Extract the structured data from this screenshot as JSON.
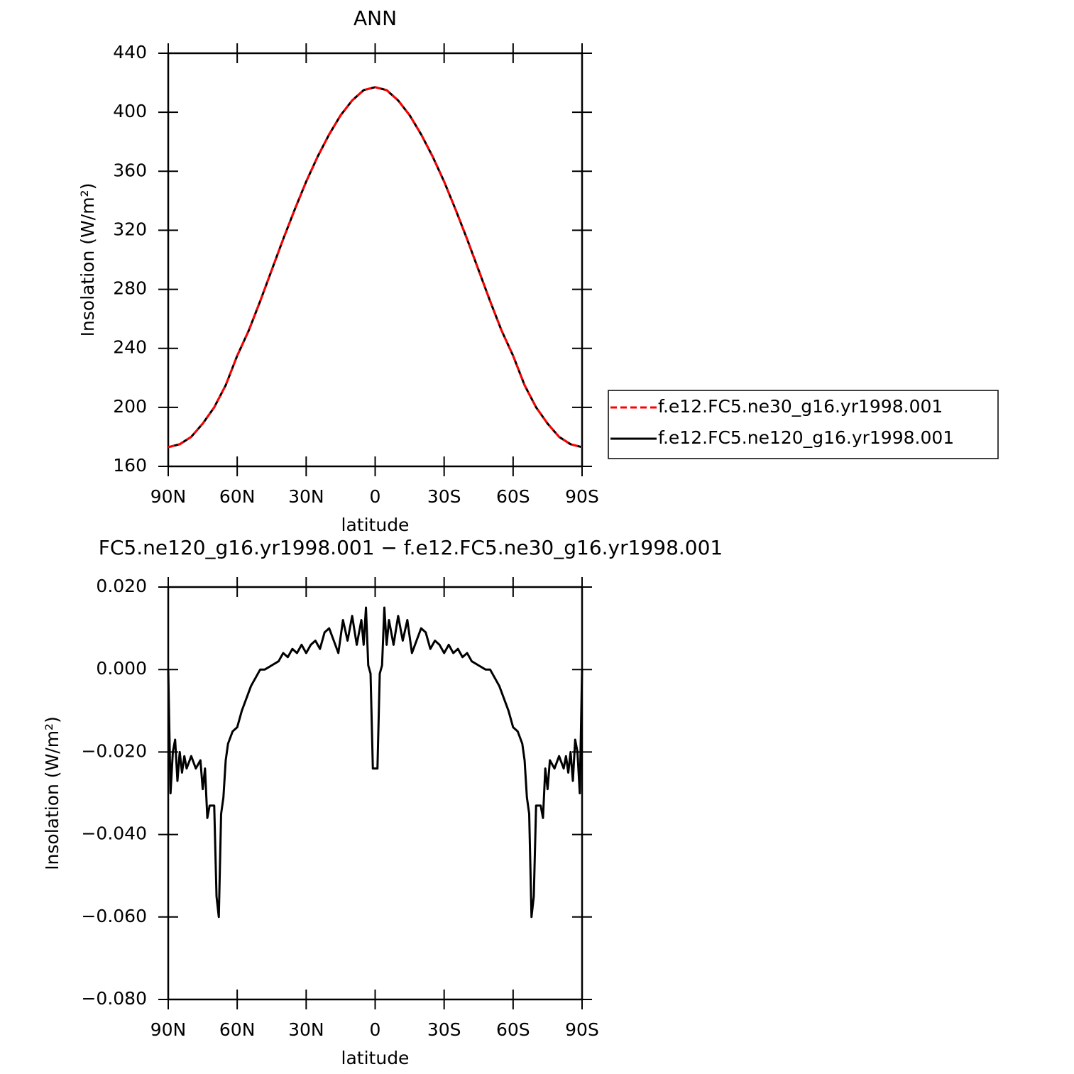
{
  "chart_data": [
    {
      "type": "line",
      "title": "ANN",
      "x_label": "latitude",
      "y_label": "Insolation (W/m²)",
      "x": [
        90,
        85,
        80,
        75,
        70,
        65,
        60,
        55,
        50,
        45,
        40,
        35,
        30,
        25,
        20,
        15,
        10,
        5,
        0,
        -5,
        -10,
        -15,
        -20,
        -25,
        -30,
        -35,
        -40,
        -45,
        -50,
        -55,
        -60,
        -65,
        -70,
        -75,
        -80,
        -85,
        -90
      ],
      "series": [
        {
          "name": "f.e12.FC5.ne30_g16.yr1998.001",
          "color": "#ff0000",
          "style": "dashed",
          "values": [
            173,
            175,
            180,
            189,
            200,
            215,
            235,
            252,
            272,
            293,
            314,
            334,
            353,
            370,
            385,
            398,
            408,
            415,
            417,
            415,
            408,
            398,
            385,
            370,
            353,
            334,
            314,
            293,
            272,
            252,
            235,
            215,
            200,
            189,
            180,
            175,
            173
          ]
        },
        {
          "name": "f.e12.FC5.ne120_g16.yr1998.001",
          "color": "#000000",
          "style": "solid",
          "values": [
            173,
            175,
            180,
            189,
            200,
            215,
            235,
            252,
            272,
            293,
            314,
            334,
            353,
            370,
            385,
            398,
            408,
            415,
            417,
            415,
            408,
            398,
            385,
            370,
            353,
            334,
            314,
            293,
            272,
            252,
            235,
            215,
            200,
            189,
            180,
            175,
            173
          ]
        }
      ],
      "xlim": [
        90,
        -90
      ],
      "xticks": [
        {
          "value": 90,
          "label": "90N"
        },
        {
          "value": 60,
          "label": "60N"
        },
        {
          "value": 30,
          "label": "30N"
        },
        0,
        {
          "value": -30,
          "label": "30S"
        },
        {
          "value": -60,
          "label": "60S"
        },
        {
          "value": -90,
          "label": "90S"
        }
      ],
      "ylim": [
        160,
        440
      ],
      "yticks": [
        160,
        200,
        240,
        280,
        320,
        360,
        400,
        440
      ],
      "legend": "right"
    },
    {
      "type": "line",
      "title": "FC5.ne120_g16.yr1998.001 − f.e12.FC5.ne30_g16.yr1998.001",
      "x_label": "latitude",
      "y_label": "Insolation (W/m²)",
      "x": [
        90,
        89,
        88,
        87,
        86,
        85,
        84,
        83,
        82,
        80,
        78,
        76,
        75,
        74,
        73,
        72,
        70,
        69,
        68,
        67,
        66,
        65,
        64,
        62,
        60,
        58,
        56,
        54,
        52,
        50,
        48,
        45,
        42,
        40,
        38,
        36,
        34,
        32,
        30,
        28,
        26,
        24,
        22,
        20,
        18,
        16,
        14,
        12,
        10,
        8,
        6,
        5,
        4,
        3,
        2,
        1,
        0,
        -1,
        -2,
        -3,
        -4,
        -5,
        -6,
        -8,
        -10,
        -12,
        -14,
        -16,
        -18,
        -20,
        -22,
        -24,
        -26,
        -28,
        -30,
        -32,
        -34,
        -36,
        -38,
        -40,
        -42,
        -45,
        -48,
        -50,
        -52,
        -54,
        -56,
        -58,
        -60,
        -62,
        -64,
        -65,
        -66,
        -67,
        -68,
        -69,
        -70,
        -72,
        -73,
        -74,
        -75,
        -76,
        -78,
        -80,
        -82,
        -83,
        -84,
        -85,
        -86,
        -87,
        -88,
        -89,
        -90
      ],
      "values": [
        0,
        -0.03,
        -0.02,
        -0.017,
        -0.027,
        -0.02,
        -0.025,
        -0.021,
        -0.024,
        -0.021,
        -0.024,
        -0.022,
        -0.029,
        -0.024,
        -0.036,
        -0.033,
        -0.033,
        -0.055,
        -0.06,
        -0.035,
        -0.031,
        -0.022,
        -0.018,
        -0.015,
        -0.014,
        -0.01,
        -0.007,
        -0.004,
        -0.002,
        0,
        0,
        0.001,
        0.002,
        0.004,
        0.003,
        0.005,
        0.004,
        0.006,
        0.004,
        0.006,
        0.007,
        0.005,
        0.009,
        0.01,
        0.007,
        0.004,
        0.012,
        0.007,
        0.013,
        0.006,
        0.012,
        0.006,
        0.015,
        0.001,
        -0.001,
        -0.024,
        -0.024,
        -0.024,
        -0.001,
        0.001,
        0.015,
        0.006,
        0.012,
        0.006,
        0.013,
        0.007,
        0.012,
        0.004,
        0.007,
        0.01,
        0.009,
        0.005,
        0.007,
        0.006,
        0.004,
        0.006,
        0.004,
        0.005,
        0.003,
        0.004,
        0.002,
        0.001,
        0,
        0,
        -0.002,
        -0.004,
        -0.007,
        -0.01,
        -0.014,
        -0.015,
        -0.018,
        -0.022,
        -0.031,
        -0.035,
        -0.06,
        -0.055,
        -0.033,
        -0.033,
        -0.036,
        -0.024,
        -0.029,
        -0.022,
        -0.024,
        -0.021,
        -0.024,
        -0.021,
        -0.025,
        -0.02,
        -0.027,
        -0.017,
        -0.02,
        -0.03,
        0
      ],
      "color": "#000000",
      "xlim": [
        90,
        -90
      ],
      "xticks": [
        {
          "value": 90,
          "label": "90N"
        },
        {
          "value": 60,
          "label": "60N"
        },
        {
          "value": 30,
          "label": "30N"
        },
        0,
        {
          "value": -30,
          "label": "30S"
        },
        {
          "value": -60,
          "label": "60S"
        },
        {
          "value": -90,
          "label": "90S"
        }
      ],
      "ylim": [
        -0.08,
        0.02
      ],
      "yticks": [
        {
          "value": -0.08,
          "label": "−0.080"
        },
        {
          "value": -0.06,
          "label": "−0.060"
        },
        {
          "value": -0.04,
          "label": "−0.040"
        },
        {
          "value": -0.02,
          "label": "−0.020"
        },
        {
          "value": 0,
          "label": "0.000"
        },
        {
          "value": 0.02,
          "label": "0.020"
        }
      ]
    }
  ]
}
